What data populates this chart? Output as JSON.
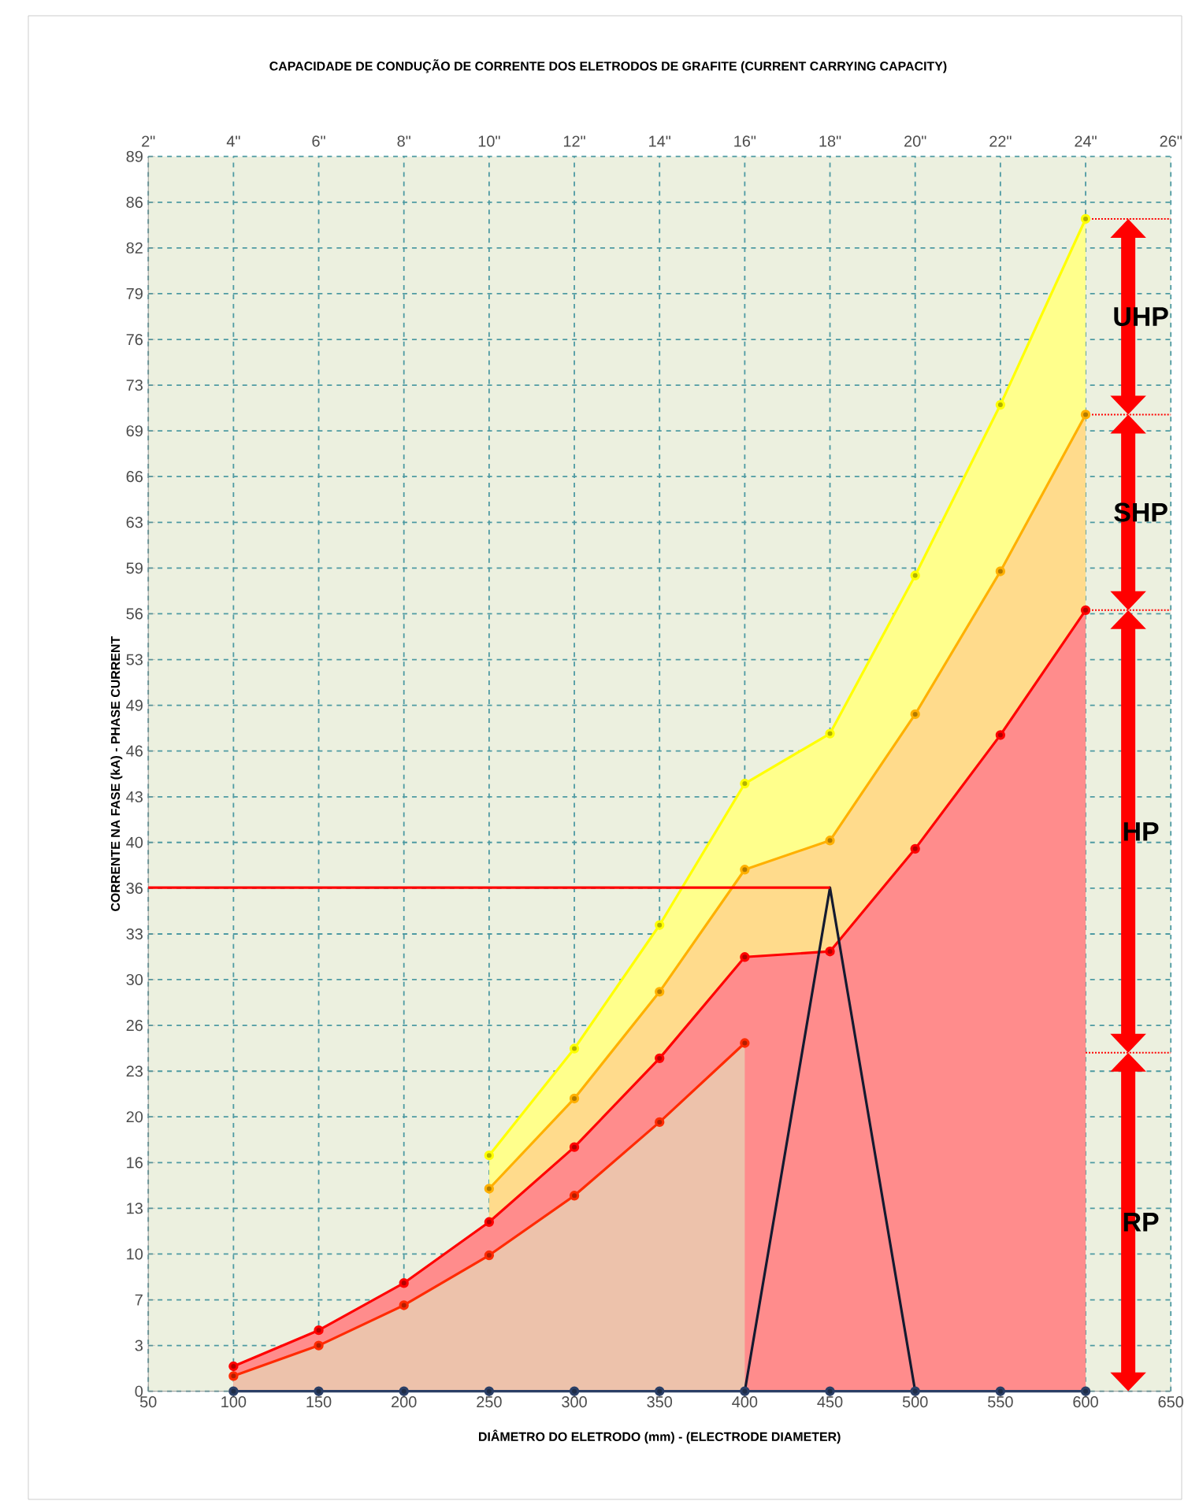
{
  "chart_data": {
    "type": "line",
    "title": "CAPACIDADE DE CONDUÇÃO DE CORRENTE DOS ELETRODOS DE GRAFITE (CURRENT CARRYING CAPACITY)",
    "xlabel": "DIÂMETRO DO ELETRODO (mm) - (ELECTRODE DIAMETER)",
    "ylabel": "CORRENTE NA FASE (kA) - PHASE CURRENT",
    "xlim": [
      50,
      650
    ],
    "xticks": [
      50,
      100,
      150,
      200,
      250,
      300,
      350,
      400,
      450,
      500,
      550,
      600,
      650
    ],
    "x2lim": [
      2,
      26
    ],
    "x2ticks": [
      {
        "value": 2,
        "label": "2\""
      },
      {
        "value": 4,
        "label": "4\""
      },
      {
        "value": 6,
        "label": "6\""
      },
      {
        "value": 8,
        "label": "8\""
      },
      {
        "value": 10,
        "label": "10\""
      },
      {
        "value": 12,
        "label": "12\""
      },
      {
        "value": 14,
        "label": "14\""
      },
      {
        "value": 16,
        "label": "16\""
      },
      {
        "value": 18,
        "label": "18\""
      },
      {
        "value": 20,
        "label": "20\""
      },
      {
        "value": 22,
        "label": "22\""
      },
      {
        "value": 24,
        "label": "24\""
      },
      {
        "value": 26,
        "label": "26\""
      }
    ],
    "ylim": [
      0,
      89
    ],
    "yticks": [
      0,
      {
        "value": 3.3,
        "label": "3"
      },
      {
        "value": 6.59,
        "label": "7"
      },
      {
        "value": 9.89,
        "label": "10"
      },
      {
        "value": 13.19,
        "label": "13"
      },
      {
        "value": 16.48,
        "label": "16"
      },
      {
        "value": 19.78,
        "label": "20"
      },
      {
        "value": 23.07,
        "label": "23"
      },
      {
        "value": 26.37,
        "label": "26"
      },
      {
        "value": 29.67,
        "label": "30"
      },
      {
        "value": 32.96,
        "label": "33"
      },
      {
        "value": 36.26,
        "label": "36"
      },
      {
        "value": 39.56,
        "label": "40"
      },
      {
        "value": 42.85,
        "label": "43"
      },
      {
        "value": 46.15,
        "label": "46"
      },
      {
        "value": 49.44,
        "label": "49"
      },
      {
        "value": 52.74,
        "label": "53"
      },
      {
        "value": 56.04,
        "label": "56"
      },
      {
        "value": 59.33,
        "label": "59"
      },
      {
        "value": 62.63,
        "label": "63"
      },
      {
        "value": 65.93,
        "label": "66"
      },
      {
        "value": 69.22,
        "label": "69"
      },
      {
        "value": 72.52,
        "label": "73"
      },
      {
        "value": 75.81,
        "label": "76"
      },
      {
        "value": 79.11,
        "label": "79"
      },
      {
        "value": 82.41,
        "label": "82"
      },
      {
        "value": 85.7,
        "label": "86"
      },
      89
    ],
    "grid": true,
    "marker": "circle",
    "series": [
      {
        "type": "area",
        "color": "#ffff00",
        "x": [
          250,
          300,
          350,
          400,
          450,
          500,
          550,
          600
        ],
        "values": [
          17.0,
          24.7,
          33.6,
          43.8,
          47.4,
          58.8,
          71.1,
          84.5
        ]
      },
      {
        "type": "area",
        "color": "#ffb000",
        "x": [
          250,
          300,
          350,
          400,
          450,
          500,
          550,
          600
        ],
        "values": [
          14.6,
          21.1,
          28.8,
          37.6,
          39.7,
          48.8,
          59.1,
          70.4
        ]
      },
      {
        "type": "area",
        "color": "#ff0000",
        "x": [
          100,
          150,
          200,
          250,
          300,
          350,
          400,
          450,
          500,
          550,
          600
        ],
        "values": [
          1.8,
          4.4,
          7.8,
          12.2,
          17.6,
          24.0,
          31.3,
          31.7,
          39.1,
          47.3,
          56.3
        ]
      },
      {
        "type": "area",
        "color": "#ff2a00",
        "x": [
          100,
          150,
          200,
          250,
          300,
          350,
          400
        ],
        "values": [
          1.1,
          3.3,
          6.2,
          9.8,
          14.1,
          19.4,
          25.1
        ]
      },
      {
        "color": "#2b3f66",
        "x": [
          100,
          150,
          200,
          250,
          300,
          350,
          400,
          450,
          500,
          550,
          600
        ],
        "values": [
          0,
          0,
          0,
          0,
          0,
          0,
          0,
          0,
          0,
          0,
          0
        ]
      },
      {
        "color": "#141a30",
        "marker": "none",
        "x": [
          400,
          450,
          500
        ],
        "values": [
          0,
          36.3,
          0
        ]
      },
      {
        "color": "#ff0000",
        "marker": "none",
        "x": [
          50,
          450
        ],
        "values": [
          36.3,
          36.3
        ]
      }
    ],
    "ref_lines": [
      {
        "axis": "y",
        "value": 84.5,
        "color": "#ff0000",
        "line_style": "dotted"
      },
      {
        "axis": "y",
        "value": 70.4,
        "color": "#ff0000",
        "line_style": "dotted"
      },
      {
        "axis": "y",
        "value": 56.3,
        "color": "#ff0000",
        "line_style": "dotted"
      },
      {
        "axis": "y",
        "value": 24.4,
        "color": "#ff0000",
        "line_style": "dotted"
      }
    ],
    "annotations": [
      "UHP",
      "SHP",
      "HP",
      "RP"
    ]
  }
}
